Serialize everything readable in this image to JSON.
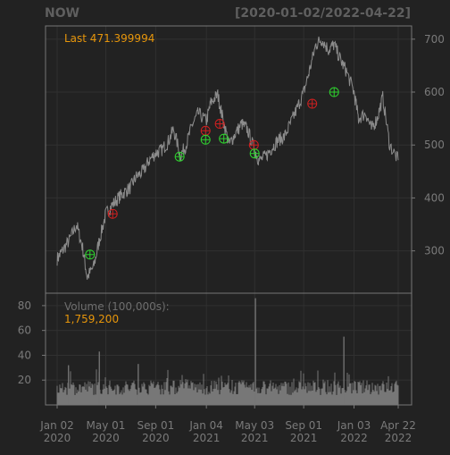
{
  "chart_data": {
    "type": "line",
    "symbol": "NOW",
    "date_range": "[2020-01-02/2022-04-22]",
    "last_label": "Last 471.399994",
    "volume_label": "Volume (100,000s):",
    "volume_value": "1,759,200",
    "price_panel": {
      "ylim": [
        220,
        725
      ],
      "y_ticks": [
        "300",
        "400",
        "500",
        "600",
        "700"
      ],
      "grid": true,
      "series": [
        {
          "color": "#8c8c8c",
          "x": [
            "2020-01-02",
            "2020-01-15",
            "2020-02-01",
            "2020-02-19",
            "2020-03-05",
            "2020-03-16",
            "2020-04-01",
            "2020-04-15",
            "2020-05-01",
            "2020-05-15",
            "2020-06-01",
            "2020-06-15",
            "2020-07-01",
            "2020-07-15",
            "2020-08-01",
            "2020-08-15",
            "2020-09-01",
            "2020-09-15",
            "2020-10-01",
            "2020-10-15",
            "2020-11-01",
            "2020-11-15",
            "2020-12-01",
            "2020-12-15",
            "2021-01-04",
            "2021-01-15",
            "2021-02-01",
            "2021-02-12",
            "2021-03-01",
            "2021-03-15",
            "2021-04-01",
            "2021-04-15",
            "2021-05-03",
            "2021-05-14",
            "2021-06-01",
            "2021-06-15",
            "2021-07-01",
            "2021-07-15",
            "2021-08-02",
            "2021-08-16",
            "2021-09-01",
            "2021-09-15",
            "2021-10-01",
            "2021-10-15",
            "2021-11-01",
            "2021-11-15",
            "2021-12-01",
            "2021-12-15",
            "2022-01-03",
            "2022-01-14",
            "2022-02-01",
            "2022-02-15",
            "2022-03-01",
            "2022-03-15",
            "2022-04-01",
            "2022-04-22"
          ],
          "y": [
            285,
            300,
            320,
            350,
            305,
            250,
            270,
            320,
            370,
            385,
            400,
            410,
            420,
            440,
            450,
            470,
            485,
            490,
            505,
            530,
            480,
            500,
            540,
            560,
            545,
            580,
            595,
            555,
            500,
            520,
            540,
            530,
            490,
            470,
            480,
            495,
            510,
            515,
            545,
            570,
            600,
            640,
            690,
            700,
            680,
            690,
            660,
            640,
            600,
            550,
            560,
            530,
            550,
            590,
            500,
            471.4
          ]
        }
      ],
      "buy_markers": [
        {
          "x": "2020-03-23",
          "y": 293
        },
        {
          "x": "2020-10-30",
          "y": 478
        },
        {
          "x": "2021-01-02",
          "y": 510
        },
        {
          "x": "2021-02-16",
          "y": 512
        },
        {
          "x": "2021-05-03",
          "y": 484
        },
        {
          "x": "2021-11-15",
          "y": 600
        }
      ],
      "sell_markers": [
        {
          "x": "2020-05-18",
          "y": 370
        },
        {
          "x": "2021-01-02",
          "y": 527
        },
        {
          "x": "2021-02-06",
          "y": 540
        },
        {
          "x": "2021-05-01",
          "y": 500
        },
        {
          "x": "2021-09-22",
          "y": 578
        }
      ]
    },
    "volume_panel": {
      "ylim": [
        0,
        90
      ],
      "y_ticks": [
        "20",
        "40",
        "60",
        "80"
      ],
      "grid": true,
      "spikes": [
        {
          "x": "2021-05-05",
          "value": 86
        },
        {
          "x": "2021-12-09",
          "value": 55
        },
        {
          "x": "2020-04-15",
          "value": 43
        },
        {
          "x": "2020-07-20",
          "value": 33
        },
        {
          "x": "2020-01-30",
          "value": 32
        }
      ]
    },
    "x_axis": {
      "range": [
        "2020-01-02",
        "2022-04-22"
      ],
      "ticks": [
        {
          "x": "2020-01-02",
          "line1": "Jan 02",
          "line2": "2020"
        },
        {
          "x": "2020-05-01",
          "line1": "May 01",
          "line2": "2020"
        },
        {
          "x": "2020-09-01",
          "line1": "Sep 01",
          "line2": "2020"
        },
        {
          "x": "2021-01-04",
          "line1": "Jan 04",
          "line2": "2021"
        },
        {
          "x": "2021-05-03",
          "line1": "May 03",
          "line2": "2021"
        },
        {
          "x": "2021-09-01",
          "line1": "Sep 01",
          "line2": "2021"
        },
        {
          "x": "2022-01-03",
          "line1": "Jan 03",
          "line2": "2022"
        },
        {
          "x": "2022-04-22",
          "line1": "Apr 22",
          "line2": "2022"
        }
      ]
    },
    "colors": {
      "background": "#222222",
      "panel_border": "#777777",
      "grid": "#303030",
      "axis_text": "#7a7a7a",
      "title_text": "#5f5f5f",
      "price_line": "#8c8c8c",
      "volume_bar": "#777777",
      "last_value": "#e7960b",
      "buy_marker": "#2fd22f",
      "sell_marker": "#d02020"
    }
  }
}
